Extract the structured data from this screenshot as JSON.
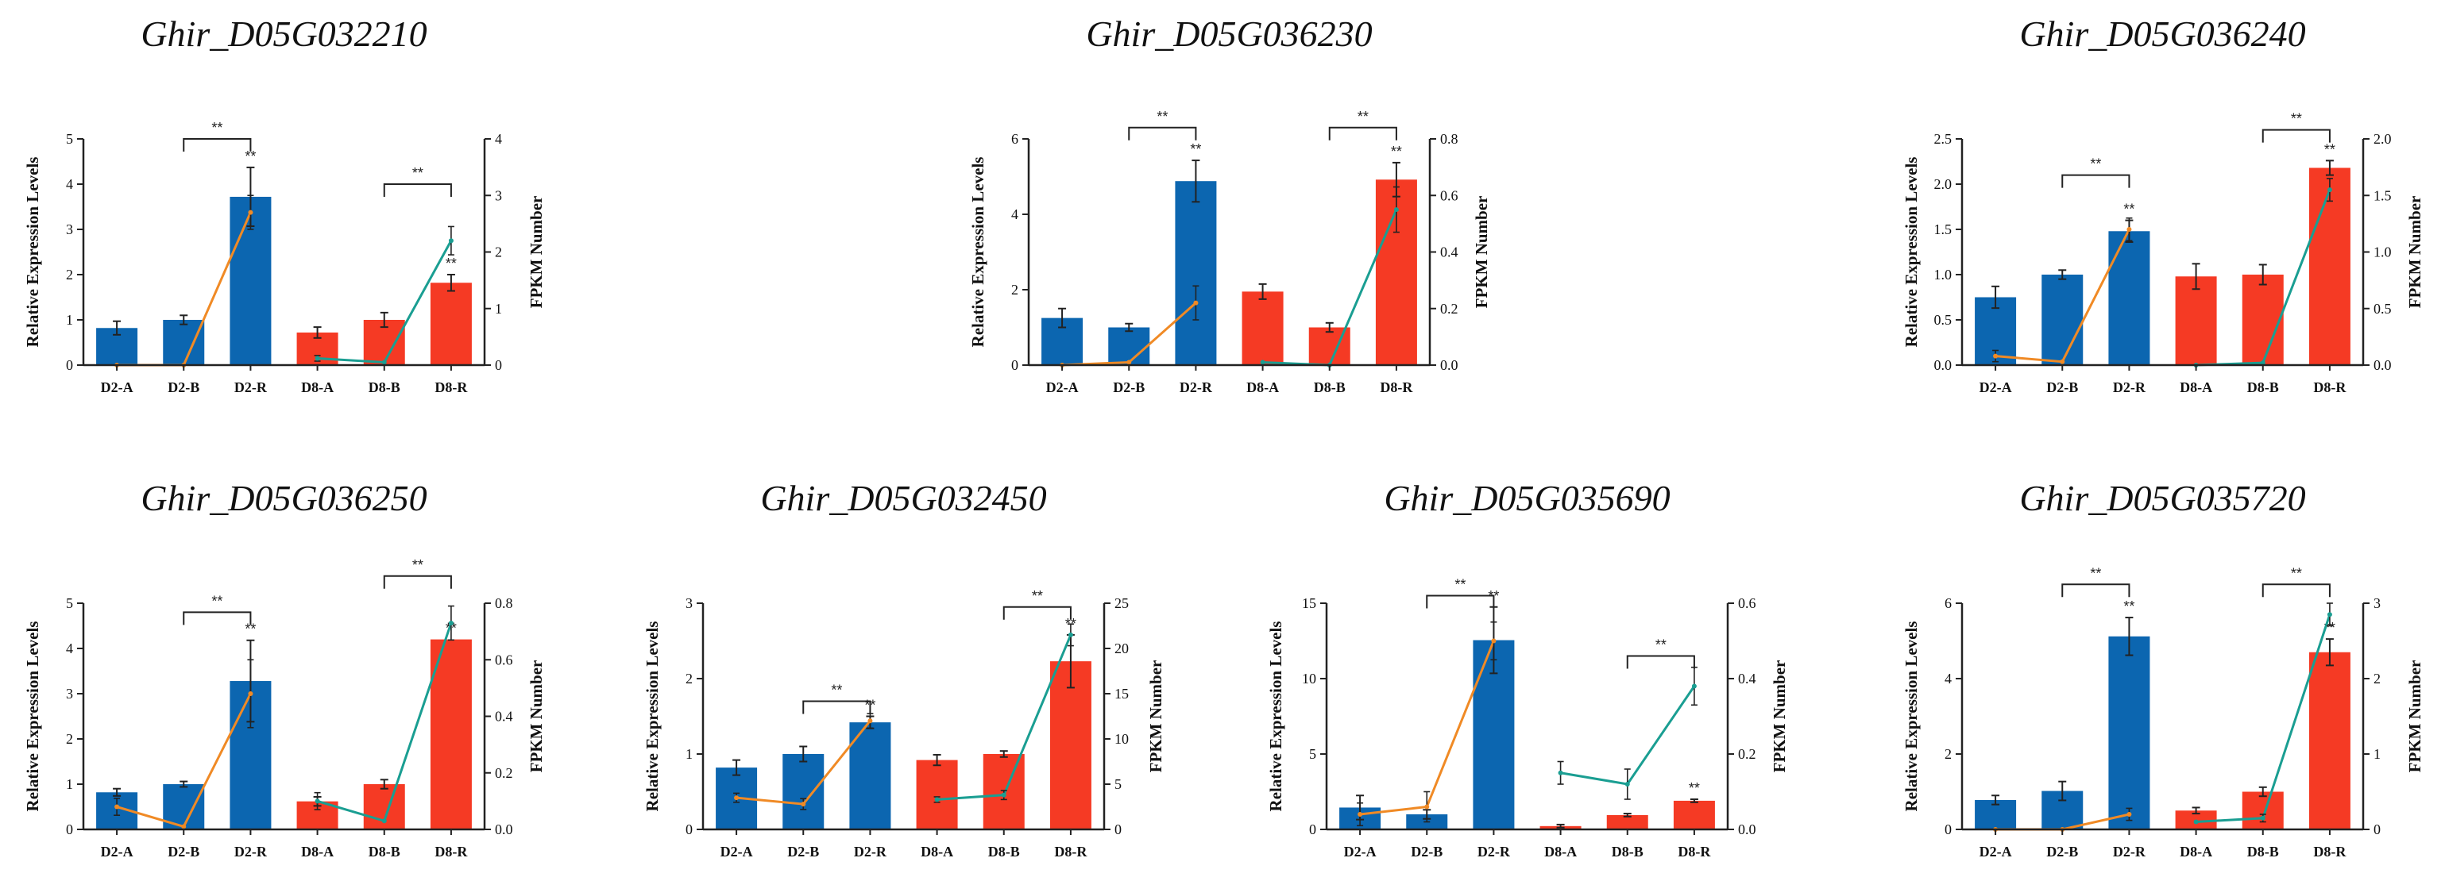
{
  "colors": {
    "blue": "#0c66b0",
    "red": "#f53a24",
    "orange": "#f08a25",
    "teal": "#1a9e92"
  },
  "chart_data": [
    {
      "type": "bar",
      "title": "Ghir_D05G032210",
      "ylabel": "Relative Expression Levels",
      "y2label": "FPKM Number",
      "categories": [
        "D2-A",
        "D2-B",
        "D2-R",
        "D8-A",
        "D8-B",
        "D8-R"
      ],
      "values": [
        0.82,
        1.0,
        3.72,
        0.72,
        1.0,
        1.82
      ],
      "errors": [
        0.15,
        0.1,
        0.65,
        0.12,
        0.16,
        0.18
      ],
      "bar_labels": [
        "",
        "",
        "**",
        "",
        "",
        "**"
      ],
      "line_d2": [
        0.0,
        0.0,
        2.7
      ],
      "line_d8": [
        0.12,
        0.05,
        2.2
      ],
      "line_err": [
        0,
        0,
        0.3,
        0.05,
        0,
        0.25
      ],
      "ylim": [
        0,
        5
      ],
      "yticks": [
        0,
        1,
        2,
        3,
        4,
        5
      ],
      "y2lim": [
        0,
        4
      ],
      "y2ticks": [
        0,
        1,
        2,
        3,
        4
      ],
      "brackets": [
        {
          "from": 1,
          "to": 2,
          "y": 5.0,
          "label": "**"
        },
        {
          "from": 4,
          "to": 5,
          "y": 4.0,
          "label": "**"
        }
      ]
    },
    {
      "type": "bar",
      "title": "Ghir_D05G036230",
      "ylabel": "Relative Expression Levels",
      "y2label": "FPKM Number",
      "categories": [
        "D2-A",
        "D2-B",
        "D2-R",
        "D8-A",
        "D8-B",
        "D8-R"
      ],
      "values": [
        1.25,
        1.0,
        4.88,
        1.95,
        1.0,
        4.92
      ],
      "errors": [
        0.25,
        0.1,
        0.55,
        0.2,
        0.12,
        0.45
      ],
      "bar_labels": [
        "",
        "",
        "**",
        "",
        "",
        "**"
      ],
      "line_d2": [
        0.0,
        0.01,
        0.22
      ],
      "line_d8": [
        0.01,
        0.0,
        0.55
      ],
      "line_err": [
        0,
        0,
        0.06,
        0,
        0,
        0.08
      ],
      "ylim": [
        0,
        6
      ],
      "yticks": [
        0,
        2,
        4,
        6
      ],
      "y2lim": [
        0,
        0.8
      ],
      "y2ticks": [
        0.0,
        0.2,
        0.4,
        0.6,
        0.8
      ],
      "brackets": [
        {
          "from": 1,
          "to": 2,
          "y": 6.3,
          "label": "**"
        },
        {
          "from": 4,
          "to": 5,
          "y": 6.3,
          "label": "**"
        }
      ]
    },
    {
      "type": "bar",
      "title": "Ghir_D05G036240",
      "ylabel": "Relative Expression Levels",
      "y2label": "FPKM Number",
      "categories": [
        "D2-A",
        "D2-B",
        "D2-R",
        "D8-A",
        "D8-B",
        "D8-R"
      ],
      "values": [
        0.75,
        1.0,
        1.48,
        0.98,
        1.0,
        2.18
      ],
      "errors": [
        0.12,
        0.05,
        0.12,
        0.14,
        0.11,
        0.08
      ],
      "bar_labels": [
        "",
        "",
        "**",
        "",
        "",
        "**"
      ],
      "line_d2": [
        0.08,
        0.03,
        1.2
      ],
      "line_d8": [
        0.0,
        0.02,
        1.55
      ],
      "line_err": [
        0.05,
        0,
        0.1,
        0,
        0,
        0.1
      ],
      "ylim": [
        0,
        2.5
      ],
      "yticks": [
        0.0,
        0.5,
        1.0,
        1.5,
        2.0,
        2.5
      ],
      "y2lim": [
        0,
        2.0
      ],
      "y2ticks": [
        0.0,
        0.5,
        1.0,
        1.5,
        2.0
      ],
      "brackets": [
        {
          "from": 1,
          "to": 2,
          "y": 2.1,
          "label": "**"
        },
        {
          "from": 4,
          "to": 5,
          "y": 2.6,
          "label": "**"
        }
      ]
    },
    {
      "type": "bar",
      "title": "Ghir_D05G036250",
      "ylabel": "Relative Expression Levels",
      "y2label": "FPKM Number",
      "categories": [
        "D2-A",
        "D2-B",
        "D2-R",
        "D8-A",
        "D8-B",
        "D8-R"
      ],
      "values": [
        0.82,
        1.0,
        3.28,
        0.62,
        1.0,
        4.2
      ],
      "errors": [
        0.08,
        0.06,
        0.9,
        0.1,
        0.1,
        0.0
      ],
      "bar_labels": [
        "",
        "",
        "**",
        "",
        "",
        "**"
      ],
      "line_d2": [
        0.08,
        0.01,
        0.48
      ],
      "line_d8": [
        0.1,
        0.03,
        0.73
      ],
      "line_err": [
        0.03,
        0,
        0.12,
        0.03,
        0,
        0.06
      ],
      "ylim": [
        0,
        5
      ],
      "yticks": [
        0,
        1,
        2,
        3,
        4,
        5
      ],
      "y2lim": [
        0,
        0.8
      ],
      "y2ticks": [
        0.0,
        0.2,
        0.4,
        0.6,
        0.8
      ],
      "brackets": [
        {
          "from": 1,
          "to": 2,
          "y": 4.8,
          "label": "**"
        },
        {
          "from": 4,
          "to": 5,
          "y": 5.6,
          "label": "**"
        }
      ]
    },
    {
      "type": "bar",
      "title": "Ghir_D05G032450",
      "ylabel": "Relative Expression Levels",
      "y2label": "FPKM Number",
      "categories": [
        "D2-A",
        "D2-B",
        "D2-R",
        "D8-A",
        "D8-B",
        "D8-R"
      ],
      "values": [
        0.82,
        1.0,
        1.42,
        0.92,
        1.0,
        2.23
      ],
      "errors": [
        0.1,
        0.1,
        0.08,
        0.07,
        0.04,
        0.35
      ],
      "bar_labels": [
        "",
        "",
        "**",
        "",
        "",
        "**"
      ],
      "line_d2": [
        3.5,
        2.8,
        12.0
      ],
      "line_d8": [
        3.3,
        3.8,
        21.5
      ],
      "line_err": [
        0.5,
        0.6,
        0.8,
        0.3,
        0.5,
        1.2
      ],
      "ylim": [
        0,
        3
      ],
      "yticks": [
        0,
        1,
        2,
        3
      ],
      "y2lim": [
        0,
        25
      ],
      "y2ticks": [
        0,
        5,
        10,
        15,
        20,
        25
      ],
      "brackets": [
        {
          "from": 1,
          "to": 2,
          "y": 1.7,
          "label": "**"
        },
        {
          "from": 4,
          "to": 5,
          "y": 2.95,
          "label": "**"
        }
      ]
    },
    {
      "type": "bar",
      "title": "Ghir_D05G035690",
      "ylabel": "Relative Expression Levels",
      "y2label": "FPKM Number",
      "categories": [
        "D2-A",
        "D2-B",
        "D2-R",
        "D8-A",
        "D8-B",
        "D8-R"
      ],
      "values": [
        1.45,
        1.0,
        12.55,
        0.22,
        0.95,
        1.9
      ],
      "errors": [
        0.8,
        0.3,
        2.2,
        0.1,
        0.1,
        0.1
      ],
      "bar_labels": [
        "",
        "",
        "**",
        "",
        "",
        "**"
      ],
      "line_d2": [
        0.04,
        0.06,
        0.5
      ],
      "line_d8": [
        0.15,
        0.12,
        0.38
      ],
      "line_err": [
        0.03,
        0.04,
        0.05,
        0.03,
        0.04,
        0.05
      ],
      "ylim": [
        0,
        15
      ],
      "yticks": [
        0,
        5,
        10,
        15
      ],
      "y2lim": [
        0,
        0.6
      ],
      "y2ticks": [
        0.0,
        0.2,
        0.4,
        0.6
      ],
      "brackets": [
        {
          "from": 1,
          "to": 2,
          "y": 15.5,
          "label": "**"
        },
        {
          "from": 4,
          "to": 5,
          "y": 11.5,
          "label": "**"
        }
      ]
    },
    {
      "type": "bar",
      "title": "Ghir_D05G035720",
      "ylabel": "Relative Expression Levels",
      "y2label": "FPKM Number",
      "categories": [
        "D2-A",
        "D2-B",
        "D2-R",
        "D8-A",
        "D8-B",
        "D8-R"
      ],
      "values": [
        0.78,
        1.02,
        5.12,
        0.5,
        1.0,
        4.7
      ],
      "errors": [
        0.12,
        0.25,
        0.5,
        0.08,
        0.12,
        0.35
      ],
      "bar_labels": [
        "",
        "",
        "**",
        "",
        "",
        "**"
      ],
      "line_d2": [
        0.0,
        0.0,
        0.2
      ],
      "line_d8": [
        0.1,
        0.15,
        2.85
      ],
      "line_err": [
        0,
        0,
        0.08,
        0,
        0.05,
        0.15
      ],
      "ylim": [
        0,
        6
      ],
      "yticks": [
        0,
        2,
        4,
        6
      ],
      "y2lim": [
        0,
        3
      ],
      "y2ticks": [
        0,
        1,
        2,
        3
      ],
      "brackets": [
        {
          "from": 1,
          "to": 2,
          "y": 6.5,
          "label": "**"
        },
        {
          "from": 4,
          "to": 5,
          "y": 6.5,
          "label": "**"
        }
      ]
    }
  ]
}
